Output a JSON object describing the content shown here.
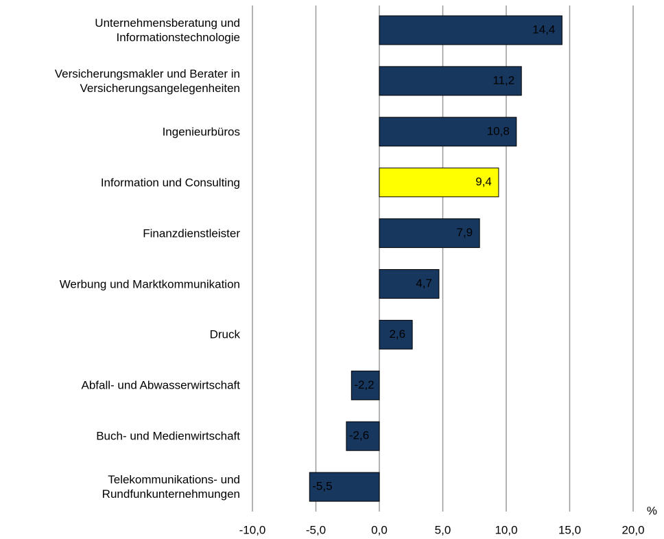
{
  "chart_data": {
    "type": "barh",
    "categories": [
      "Unternehmensberatung und\nInformationstechnologie",
      "Versicherungsmakler und Berater in\nVersicherungsangelegenheiten",
      "Ingenieurbüros",
      "Information und Consulting",
      "Finanzdienstleister",
      "Werbung und Marktkommunikation",
      "Druck",
      "Abfall- und Abwasserwirtschaft",
      "Buch- und Medienwirtschaft",
      "Telekommunikations- und\nRundfunkunternehmungen"
    ],
    "values": [
      14.4,
      11.2,
      10.8,
      9.4,
      7.9,
      4.7,
      2.6,
      -2.2,
      -2.6,
      -5.5
    ],
    "value_labels": [
      "14,4",
      "11,2",
      "10,8",
      "9,4",
      "7,9",
      "4,7",
      "2,6",
      "-2,2",
      "-2,6",
      "-5,5"
    ],
    "colors": [
      "#17375e",
      "#17375e",
      "#17375e",
      "#ffff00",
      "#17375e",
      "#17375e",
      "#17375e",
      "#17375e",
      "#17375e",
      "#17375e"
    ],
    "x_label": "%",
    "xlim": [
      -10,
      20
    ],
    "xticks": [
      {
        "value": -10,
        "label": "-10,0"
      },
      {
        "value": -5,
        "label": "-5,0"
      },
      {
        "value": 0,
        "label": "0,0"
      },
      {
        "value": 5,
        "label": "5,0"
      },
      {
        "value": 10,
        "label": "10,0"
      },
      {
        "value": 15,
        "label": "15,0"
      },
      {
        "value": 20,
        "label": "20,0"
      }
    ],
    "grid": true
  }
}
